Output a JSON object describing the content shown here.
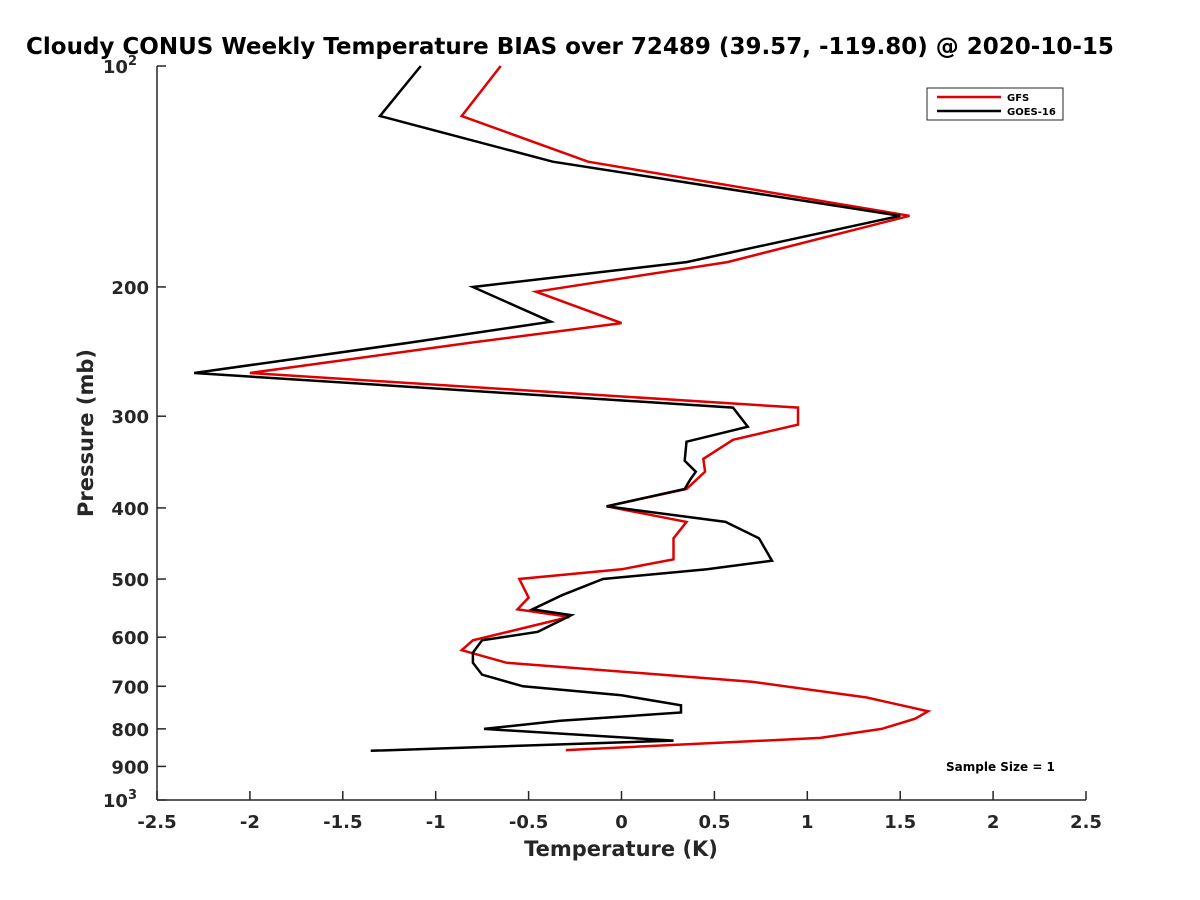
{
  "chart_data": {
    "type": "line",
    "title": "Cloudy CONUS Weekly Temperature BIAS over 72489 (39.57, -119.80) @ 2020-10-15",
    "xlabel": "Temperature (K)",
    "ylabel": "Pressure (mb)",
    "xlim": [
      -2.5,
      2.5
    ],
    "ylim": [
      100,
      1000
    ],
    "yscale": "log",
    "y_reversed": true,
    "x_ticks": [
      "-2.5",
      "-2",
      "-1.5",
      "-1",
      "-0.5",
      "0",
      "0.5",
      "1",
      "1.5",
      "2",
      "2.5"
    ],
    "y_ticks": [
      {
        "value": 100,
        "label": "10",
        "sup": "2"
      },
      {
        "value": 200,
        "label": "200"
      },
      {
        "value": 300,
        "label": "300"
      },
      {
        "value": 400,
        "label": "400"
      },
      {
        "value": 500,
        "label": "500"
      },
      {
        "value": 600,
        "label": "600"
      },
      {
        "value": 700,
        "label": "700"
      },
      {
        "value": 800,
        "label": "800"
      },
      {
        "value": 900,
        "label": "900"
      },
      {
        "value": 1000,
        "label": "10",
        "sup": "3"
      }
    ],
    "grid": false,
    "legend_position": "top-right",
    "annotation": "Sample Size = 1",
    "series": [
      {
        "name": "GFS",
        "color": "#e00000",
        "x": [
          -0.65,
          -0.86,
          -0.18,
          1.55,
          0.57,
          -0.46,
          0.0,
          -0.8,
          -2.0,
          0.95,
          0.95,
          0.6,
          0.44,
          0.45,
          0.35,
          -0.08,
          0.35,
          0.28,
          0.28,
          0.0,
          -0.55,
          -0.5,
          -0.56,
          -0.28,
          -0.8,
          -0.86,
          -0.62,
          0.7,
          1.32,
          1.65,
          1.58,
          1.4,
          1.07,
          -0.3
        ],
        "y": [
          100,
          117,
          135,
          160,
          185,
          203,
          224,
          238,
          262,
          292,
          308,
          323,
          343,
          357,
          377,
          398,
          418,
          440,
          470,
          485,
          500,
          530,
          550,
          563,
          606,
          625,
          650,
          690,
          725,
          757,
          775,
          800,
          823,
          855
        ]
      },
      {
        "name": "GOES-16",
        "color": "#000000",
        "x": [
          -1.08,
          -1.3,
          -0.37,
          1.5,
          0.35,
          -0.8,
          -0.38,
          -1.13,
          -2.3,
          0.6,
          0.68,
          0.35,
          0.34,
          0.4,
          0.37,
          0.34,
          -0.08,
          0.56,
          0.74,
          0.81,
          0.46,
          -0.1,
          -0.32,
          -0.48,
          -0.27,
          -0.45,
          -0.75,
          -0.78,
          -0.8,
          -0.8,
          -0.75,
          -0.53,
          0.0,
          0.32,
          0.32,
          -0.33,
          -0.74,
          0.28,
          -1.35
        ],
        "y": [
          100,
          117,
          135,
          160,
          185,
          200,
          223,
          238,
          262,
          292,
          310,
          325,
          345,
          357,
          366,
          377,
          398,
          418,
          440,
          472,
          485,
          500,
          526,
          550,
          560,
          590,
          606,
          620,
          630,
          650,
          675,
          700,
          720,
          743,
          760,
          780,
          800,
          830,
          857
        ]
      }
    ]
  }
}
